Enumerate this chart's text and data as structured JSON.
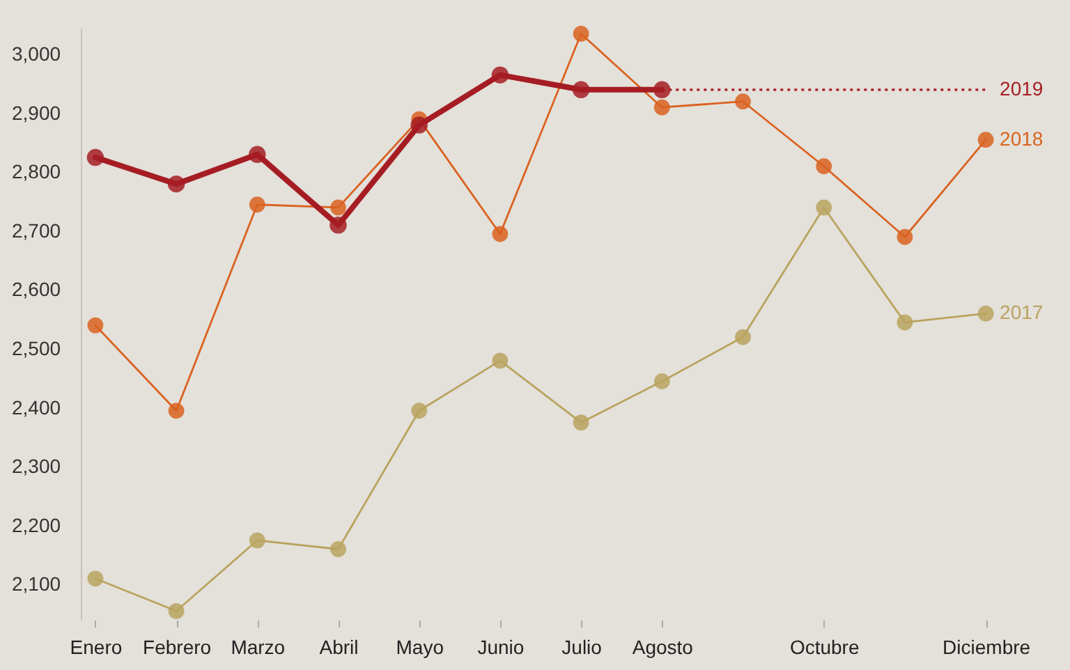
{
  "chart_data": {
    "type": "line",
    "categories": [
      "Enero",
      "Febrero",
      "Marzo",
      "Abril",
      "Mayo",
      "Junio",
      "Julio",
      "Agosto",
      null,
      "Octubre",
      null,
      "Diciembre"
    ],
    "series": [
      {
        "name": "2017",
        "color": "#b9a35e",
        "values": [
          2110,
          2055,
          2175,
          2160,
          2395,
          2480,
          2375,
          2445,
          2520,
          2740,
          2545,
          2560
        ]
      },
      {
        "name": "2018",
        "color": "#d9621f",
        "values": [
          2540,
          2395,
          2745,
          2740,
          2890,
          2695,
          3035,
          2910,
          2920,
          2810,
          2690,
          2855
        ]
      },
      {
        "name": "2019",
        "color": "#a51d23",
        "values": [
          2825,
          2780,
          2830,
          2710,
          2880,
          2965,
          2940,
          2940,
          null,
          null,
          null,
          null
        ]
      },
      {
        "color": "#a51d23",
        "line_style": "dotted",
        "marker": "none",
        "values": [
          null,
          null,
          null,
          null,
          null,
          null,
          null,
          2940,
          2940,
          2940,
          2940,
          2940
        ]
      }
    ],
    "ylim": [
      2040,
      3045
    ],
    "yticks": [
      {
        "value": 2100,
        "label": "2,100"
      },
      {
        "value": 2200,
        "label": "2,200"
      },
      {
        "value": 2300,
        "label": "2,300"
      },
      {
        "value": 2400,
        "label": "2,400"
      },
      {
        "value": 2500,
        "label": "2,500"
      },
      {
        "value": 2600,
        "label": "2,600"
      },
      {
        "value": 2700,
        "label": "2,700"
      },
      {
        "value": 2800,
        "label": "2,800"
      },
      {
        "value": 2900,
        "label": "2,900"
      },
      {
        "value": 3000,
        "label": "3,000"
      }
    ],
    "grid": false,
    "marker": "circle",
    "line_style": "solid"
  }
}
